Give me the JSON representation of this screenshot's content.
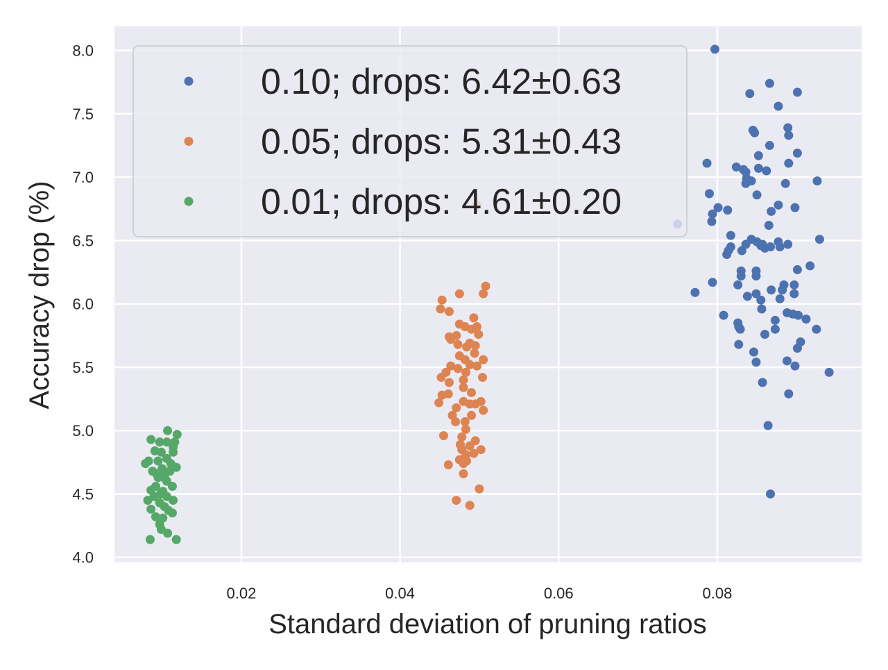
{
  "chart_data": {
    "type": "scatter",
    "title": "",
    "xlabel": "Standard deviation of pruning ratios",
    "ylabel": "Accuracy drop (%)",
    "xlim": [
      0.004,
      0.0982
    ],
    "ylim": [
      3.96,
      8.19
    ],
    "xticks": [
      0.02,
      0.04,
      0.06,
      0.08
    ],
    "xtick_labels": [
      "0.02",
      "0.04",
      "0.06",
      "0.08"
    ],
    "yticks": [
      4.0,
      4.5,
      5.0,
      5.5,
      6.0,
      6.5,
      7.0,
      7.5,
      8.0
    ],
    "ytick_labels": [
      "4.0",
      "4.5",
      "5.0",
      "5.5",
      "6.0",
      "6.5",
      "7.0",
      "7.5",
      "8.0"
    ],
    "grid": true,
    "legend_position": "top-left",
    "series": [
      {
        "name": "0.10; drops: 6.42±0.63",
        "color": "#4c72b0",
        "points": [
          [
            0.0797,
            8.01
          ],
          [
            0.0866,
            7.74
          ],
          [
            0.0841,
            7.66
          ],
          [
            0.0901,
            7.67
          ],
          [
            0.0877,
            7.56
          ],
          [
            0.0845,
            7.37
          ],
          [
            0.0847,
            7.35
          ],
          [
            0.0889,
            7.39
          ],
          [
            0.089,
            7.33
          ],
          [
            0.0866,
            7.25
          ],
          [
            0.0901,
            7.19
          ],
          [
            0.0852,
            7.17
          ],
          [
            0.0787,
            7.11
          ],
          [
            0.089,
            7.11
          ],
          [
            0.0824,
            7.08
          ],
          [
            0.0833,
            7.06
          ],
          [
            0.0836,
            7.04
          ],
          [
            0.0837,
            6.99
          ],
          [
            0.0836,
            6.95
          ],
          [
            0.0843,
            6.97
          ],
          [
            0.0852,
            7.07
          ],
          [
            0.0862,
            7.05
          ],
          [
            0.0886,
            6.95
          ],
          [
            0.0926,
            6.97
          ],
          [
            0.079,
            6.87
          ],
          [
            0.085,
            6.86
          ],
          [
            0.0877,
            6.78
          ],
          [
            0.0868,
            6.73
          ],
          [
            0.0898,
            6.76
          ],
          [
            0.0801,
            6.76
          ],
          [
            0.0794,
            6.71
          ],
          [
            0.0793,
            6.65
          ],
          [
            0.0813,
            6.74
          ],
          [
            0.0865,
            6.62
          ],
          [
            0.075,
            6.63
          ],
          [
            0.0817,
            6.54
          ],
          [
            0.0817,
            6.45
          ],
          [
            0.0814,
            6.42
          ],
          [
            0.0812,
            6.39
          ],
          [
            0.0831,
            6.42
          ],
          [
            0.0836,
            6.47
          ],
          [
            0.0843,
            6.51
          ],
          [
            0.085,
            6.49
          ],
          [
            0.0857,
            6.47
          ],
          [
            0.086,
            6.44
          ],
          [
            0.0855,
            6.46
          ],
          [
            0.0867,
            6.45
          ],
          [
            0.0879,
            6.45
          ],
          [
            0.0889,
            6.47
          ],
          [
            0.0877,
            6.49
          ],
          [
            0.0929,
            6.51
          ],
          [
            0.0901,
            6.27
          ],
          [
            0.0917,
            6.3
          ],
          [
            0.083,
            6.26
          ],
          [
            0.083,
            6.22
          ],
          [
            0.0849,
            6.26
          ],
          [
            0.0849,
            6.22
          ],
          [
            0.0794,
            6.17
          ],
          [
            0.0826,
            6.15
          ],
          [
            0.0884,
            6.15
          ],
          [
            0.0882,
            6.11
          ],
          [
            0.0897,
            6.15
          ],
          [
            0.0897,
            6.08
          ],
          [
            0.0772,
            6.09
          ],
          [
            0.0838,
            6.06
          ],
          [
            0.0849,
            6.08
          ],
          [
            0.0855,
            6.03
          ],
          [
            0.0856,
            5.96
          ],
          [
            0.0868,
            6.11
          ],
          [
            0.0879,
            6.04
          ],
          [
            0.0808,
            5.91
          ],
          [
            0.0888,
            5.93
          ],
          [
            0.0895,
            5.92
          ],
          [
            0.0902,
            5.91
          ],
          [
            0.0912,
            5.88
          ],
          [
            0.0826,
            5.85
          ],
          [
            0.0829,
            5.8
          ],
          [
            0.0827,
            5.82
          ],
          [
            0.0873,
            5.87
          ],
          [
            0.0873,
            5.8
          ],
          [
            0.0925,
            5.8
          ],
          [
            0.086,
            5.76
          ],
          [
            0.0905,
            5.7
          ],
          [
            0.0901,
            5.65
          ],
          [
            0.0827,
            5.68
          ],
          [
            0.0846,
            5.62
          ],
          [
            0.0849,
            5.54
          ],
          [
            0.0888,
            5.55
          ],
          [
            0.0898,
            5.51
          ],
          [
            0.0941,
            5.46
          ],
          [
            0.0857,
            5.38
          ],
          [
            0.089,
            5.29
          ],
          [
            0.0864,
            5.04
          ],
          [
            0.0867,
            4.5
          ]
        ]
      },
      {
        "name": "0.05; drops: 5.31±0.43",
        "color": "#dd8452",
        "points": [
          [
            0.0508,
            6.14
          ],
          [
            0.0505,
            6.08
          ],
          [
            0.0475,
            6.08
          ],
          [
            0.0453,
            6.03
          ],
          [
            0.0451,
            5.96
          ],
          [
            0.0462,
            5.94
          ],
          [
            0.0493,
            5.89
          ],
          [
            0.0475,
            5.84
          ],
          [
            0.0482,
            5.82
          ],
          [
            0.0497,
            5.82
          ],
          [
            0.049,
            5.8
          ],
          [
            0.0499,
            5.76
          ],
          [
            0.0462,
            5.74
          ],
          [
            0.0471,
            5.75
          ],
          [
            0.0464,
            5.72
          ],
          [
            0.0473,
            5.68
          ],
          [
            0.0488,
            5.69
          ],
          [
            0.0495,
            5.67
          ],
          [
            0.0484,
            5.66
          ],
          [
            0.0494,
            5.61
          ],
          [
            0.0475,
            5.59
          ],
          [
            0.0482,
            5.56
          ],
          [
            0.0505,
            5.56
          ],
          [
            0.0464,
            5.51
          ],
          [
            0.0488,
            5.52
          ],
          [
            0.0497,
            5.51
          ],
          [
            0.0473,
            5.49
          ],
          [
            0.0458,
            5.46
          ],
          [
            0.0483,
            5.46
          ],
          [
            0.0452,
            5.42
          ],
          [
            0.0504,
            5.42
          ],
          [
            0.048,
            5.4
          ],
          [
            0.0462,
            5.38
          ],
          [
            0.048,
            5.34
          ],
          [
            0.049,
            5.3
          ],
          [
            0.0461,
            5.29
          ],
          [
            0.0453,
            5.28
          ],
          [
            0.0449,
            5.22
          ],
          [
            0.048,
            5.23
          ],
          [
            0.0488,
            5.21
          ],
          [
            0.0502,
            5.23
          ],
          [
            0.0505,
            5.16
          ],
          [
            0.0471,
            5.18
          ],
          [
            0.0495,
            5.21
          ],
          [
            0.0466,
            5.12
          ],
          [
            0.049,
            5.12
          ],
          [
            0.047,
            5.07
          ],
          [
            0.0482,
            5.07
          ],
          [
            0.0483,
            5.01
          ],
          [
            0.0455,
            4.96
          ],
          [
            0.0478,
            4.95
          ],
          [
            0.0495,
            4.92
          ],
          [
            0.0476,
            4.89
          ],
          [
            0.0488,
            4.88
          ],
          [
            0.0502,
            4.85
          ],
          [
            0.0478,
            4.85
          ],
          [
            0.0493,
            4.82
          ],
          [
            0.0483,
            4.81
          ],
          [
            0.0475,
            4.77
          ],
          [
            0.0484,
            4.76
          ],
          [
            0.0461,
            4.73
          ],
          [
            0.048,
            4.74
          ],
          [
            0.048,
            4.66
          ],
          [
            0.05,
            4.54
          ],
          [
            0.0471,
            4.45
          ],
          [
            0.0488,
            4.41
          ],
          [
            0.0497,
            6.78
          ]
        ]
      },
      {
        "name": "0.01; drops: 4.61±0.20",
        "color": "#55a868",
        "points": [
          [
            0.0107,
            5.0
          ],
          [
            0.0119,
            4.97
          ],
          [
            0.0086,
            4.93
          ],
          [
            0.0097,
            4.91
          ],
          [
            0.0106,
            4.91
          ],
          [
            0.0116,
            4.91
          ],
          [
            0.0114,
            4.87
          ],
          [
            0.0091,
            4.84
          ],
          [
            0.0099,
            4.83
          ],
          [
            0.0114,
            4.83
          ],
          [
            0.0106,
            4.78
          ],
          [
            0.0083,
            4.76
          ],
          [
            0.0095,
            4.76
          ],
          [
            0.0111,
            4.74
          ],
          [
            0.0079,
            4.74
          ],
          [
            0.0118,
            4.71
          ],
          [
            0.0088,
            4.68
          ],
          [
            0.0101,
            4.66
          ],
          [
            0.0095,
            4.63
          ],
          [
            0.0106,
            4.6
          ],
          [
            0.0092,
            4.56
          ],
          [
            0.0113,
            4.56
          ],
          [
            0.0086,
            4.53
          ],
          [
            0.0101,
            4.52
          ],
          [
            0.009,
            4.48
          ],
          [
            0.0106,
            4.48
          ],
          [
            0.0082,
            4.45
          ],
          [
            0.0114,
            4.45
          ],
          [
            0.0097,
            4.43
          ],
          [
            0.0086,
            4.38
          ],
          [
            0.0108,
            4.37
          ],
          [
            0.0113,
            4.35
          ],
          [
            0.0092,
            4.32
          ],
          [
            0.0101,
            4.31
          ],
          [
            0.0097,
            4.26
          ],
          [
            0.0099,
            4.22
          ],
          [
            0.0107,
            4.19
          ],
          [
            0.0085,
            4.14
          ],
          [
            0.0118,
            4.14
          ],
          [
            0.01,
            4.7
          ],
          [
            0.0104,
            4.62
          ],
          [
            0.0093,
            4.66
          ],
          [
            0.011,
            4.68
          ],
          [
            0.0098,
            4.5
          ],
          [
            0.0103,
            4.4
          ]
        ]
      }
    ]
  }
}
